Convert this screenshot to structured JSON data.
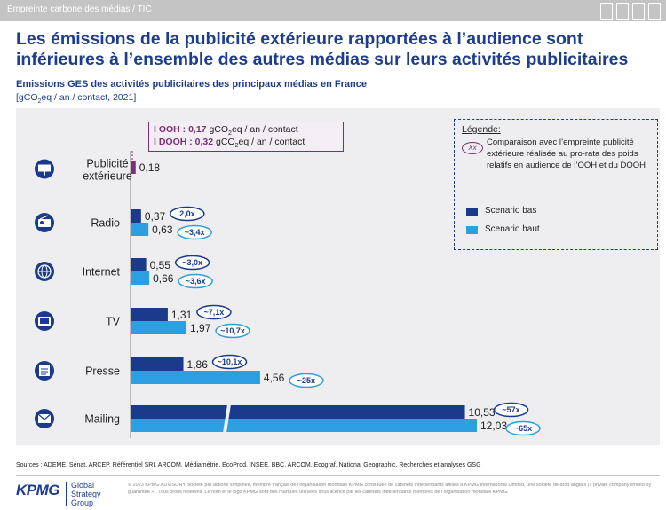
{
  "header": {
    "breadcrumb": "Empreinte carbone des médias / TIC",
    "title": "Les émissions de la publicité extérieure rapportées à l’audience sont inférieures à l’ensemble des autres médias sur leurs activités publicitaires"
  },
  "chart_data": {
    "type": "bar",
    "orientation": "horizontal",
    "title": "Emissions GES des activités publicitaires des principaux médias en France",
    "unit_prefix": "[gCO",
    "unit_sub": "2",
    "unit_suffix": "eq / an / contact, 2021]",
    "categories": [
      "Publicité extérieure",
      "Radio",
      "Internet",
      "TV",
      "Presse",
      "Mailing"
    ],
    "series": [
      {
        "name": "Scenario bas",
        "color": "#1a3a8c",
        "values": [
          0.18,
          0.37,
          0.55,
          1.31,
          1.86,
          10.53
        ],
        "labels": [
          "0,18",
          "0,37",
          "0,55",
          "1,31",
          "1,86",
          "10,53"
        ],
        "ratios": [
          null,
          "2,0x",
          "~3,0x",
          "~7,1x",
          "~10,1x",
          "~57x"
        ]
      },
      {
        "name": "Scenario haut",
        "color": "#2b9fe0",
        "values": [
          null,
          0.63,
          0.66,
          1.97,
          4.56,
          12.03
        ],
        "labels": [
          "",
          "0,63",
          "0,66",
          "1,97",
          "4,56",
          "12,03"
        ],
        "ratios": [
          null,
          "~3,4x",
          "~3,6x",
          "~10,7x",
          "~25x",
          "~65x"
        ]
      }
    ],
    "ooh_color": "#7a2f7a",
    "axis_break": true,
    "callout": {
      "ooh_label": "I OOH :",
      "ooh_value": " 0,17",
      "dooh_label": "I DOOH :",
      "dooh_value": " 0,32",
      "unit_a": " gCO",
      "unit_sub": "2",
      "unit_b": "eq / an / contact"
    },
    "legend": {
      "title": "Légende:",
      "oval_text": "Xx",
      "description": "Comparaison avec l’empreinte publicité extérieure réalisée au pro-rata des poids relatifs en audience de l’OOH et du DOOH",
      "items": [
        "Scenario bas",
        "Scenario haut"
      ],
      "placement": "top-right"
    }
  },
  "icons": [
    "billboard-icon",
    "radio-icon",
    "globe-icon",
    "tv-icon",
    "newspaper-icon",
    "envelope-icon"
  ],
  "footer": {
    "sources": "Sources : ADEME, Sénat, ARCEP, Référentiel SRI, ARCOM, Médiamétrie, EcoProd, INSEE, BBC, ARCOM, Ecograf, National Geographic, Recherches et analyses GSG",
    "logo": "KPMG",
    "group_line1": "Global",
    "group_line2": "Strategy",
    "group_line3": "Group",
    "legal": "© 2023 KPMG ADVISORY, société par actions simplifiée, membre français de l’organisation mondiale KPMG constituée de cabinets indépendants affiliés à KPMG International Limited, une société de droit anglais (« private company limited by guarantee »). Tous droits réservés. Le nom et le logo KPMG sont des marques utilisées sous licence par les cabinets indépendants membres de l’organisation mondiale KPMG."
  }
}
